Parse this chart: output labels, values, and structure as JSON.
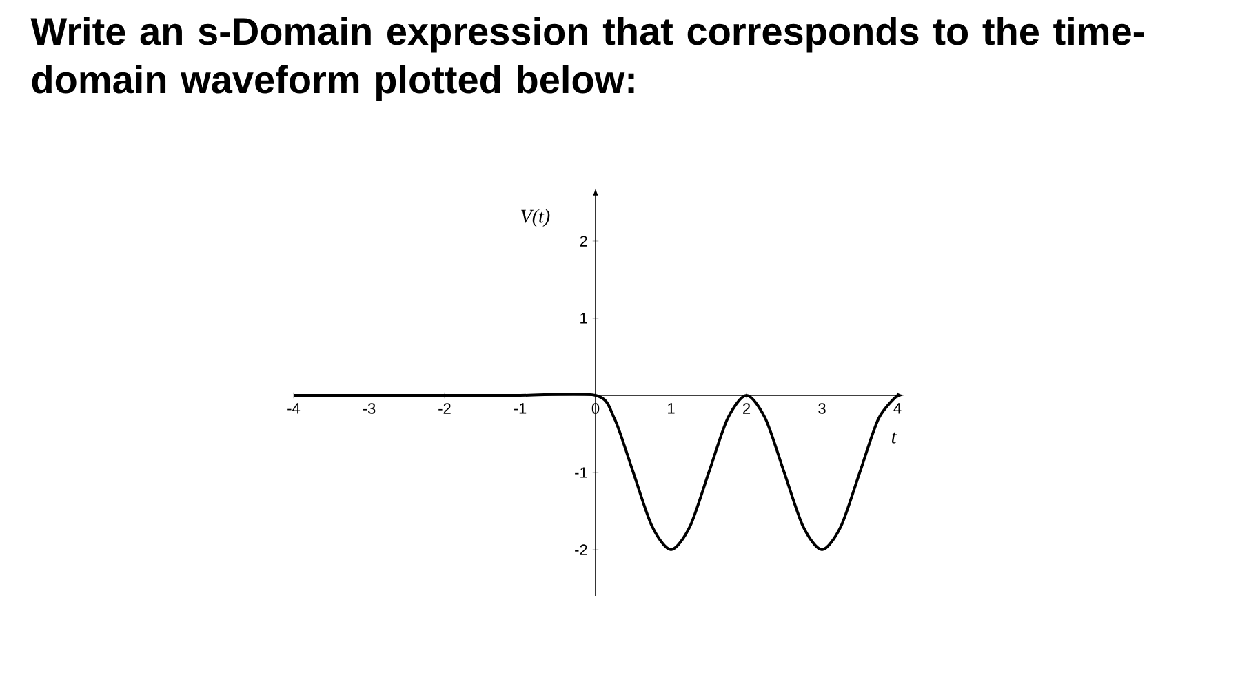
{
  "chart_data": {
    "type": "line",
    "title": "Write an s-Domain expression that corresponds to the time-domain waveform plotted below:",
    "xlabel": "t",
    "ylabel": "V(t)",
    "x": [
      -4,
      -3,
      -2,
      -1,
      0,
      0.25,
      0.5,
      0.75,
      1,
      1.25,
      1.5,
      1.75,
      2,
      2.25,
      2.5,
      2.75,
      3,
      3.25,
      3.5,
      3.75,
      4
    ],
    "values": [
      0,
      0,
      0,
      0,
      0,
      -0.3,
      -1,
      -1.7,
      -2,
      -1.7,
      -1,
      -0.3,
      0,
      -0.3,
      -1,
      -1.7,
      -2,
      -1.7,
      -1,
      -0.3,
      0
    ],
    "color": "#000000",
    "xlim": [
      -4,
      4
    ],
    "ylim": [
      -2.6,
      2.6
    ],
    "xticks": [
      -4,
      -3,
      -2,
      -1,
      0,
      1,
      2,
      3,
      4
    ],
    "yticks": [
      -2,
      -1,
      1,
      2
    ]
  }
}
